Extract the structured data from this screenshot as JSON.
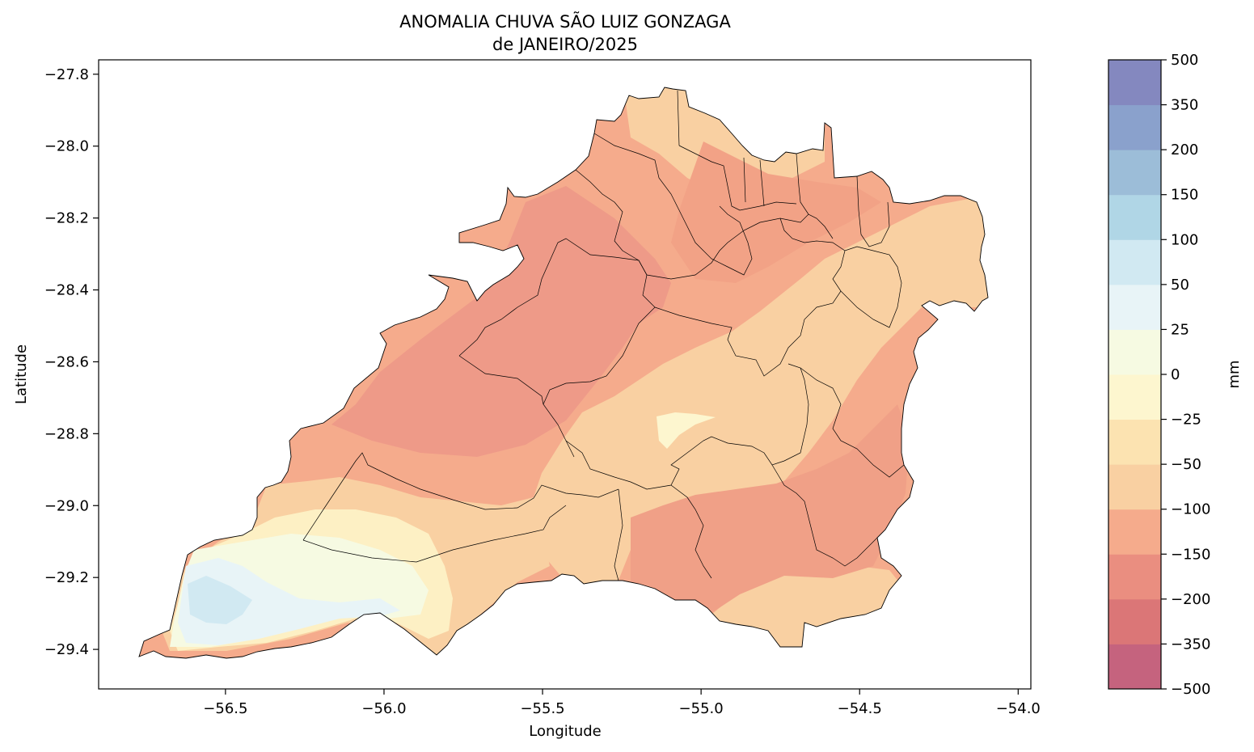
{
  "chart_data": {
    "type": "heatmap",
    "title": "ANOMALIA CHUVA SÃO LUIZ GONZAGA",
    "subtitle": "de JANEIRO/2025",
    "xlabel": "Longitude",
    "ylabel": "Latitude",
    "xlim": [
      -56.9,
      -53.96
    ],
    "ylim": [
      -29.51,
      -27.76
    ],
    "x_ticks": [
      -56.5,
      -56.0,
      -55.5,
      -55.0,
      -54.5,
      -54.0
    ],
    "x_tick_labels": [
      "−56.5",
      "−56.0",
      "−55.5",
      "−55.0",
      "−54.5",
      "−54.0"
    ],
    "y_ticks": [
      -27.8,
      -28.0,
      -28.2,
      -28.4,
      -28.6,
      -28.8,
      -29.0,
      -29.2,
      -29.4
    ],
    "y_tick_labels": [
      "−27.8",
      "−28.0",
      "−28.2",
      "−28.4",
      "−28.6",
      "−28.8",
      "−29.0",
      "−29.2",
      "−29.4"
    ],
    "colorbar": {
      "label": "mm",
      "levels": [
        -500,
        -350,
        -200,
        -150,
        -100,
        -50,
        -25,
        0,
        25,
        50,
        100,
        150,
        200,
        350,
        500
      ],
      "level_labels": [
        "−500",
        "−350",
        "−200",
        "−150",
        "−100",
        "−50",
        "−25",
        "0",
        "25",
        "50",
        "100",
        "150",
        "200",
        "350",
        "500"
      ],
      "colors": [
        "#c5637e",
        "#db7677",
        "#ea8e80",
        "#f5ab8c",
        "#f9d0a2",
        "#fce3b1",
        "#fdf6cf",
        "#f6fae2",
        "#e8f4f7",
        "#d1e9f2",
        "#b0d6e6",
        "#9cbdd8",
        "#8aa1cc",
        "#8488bf"
      ]
    }
  }
}
